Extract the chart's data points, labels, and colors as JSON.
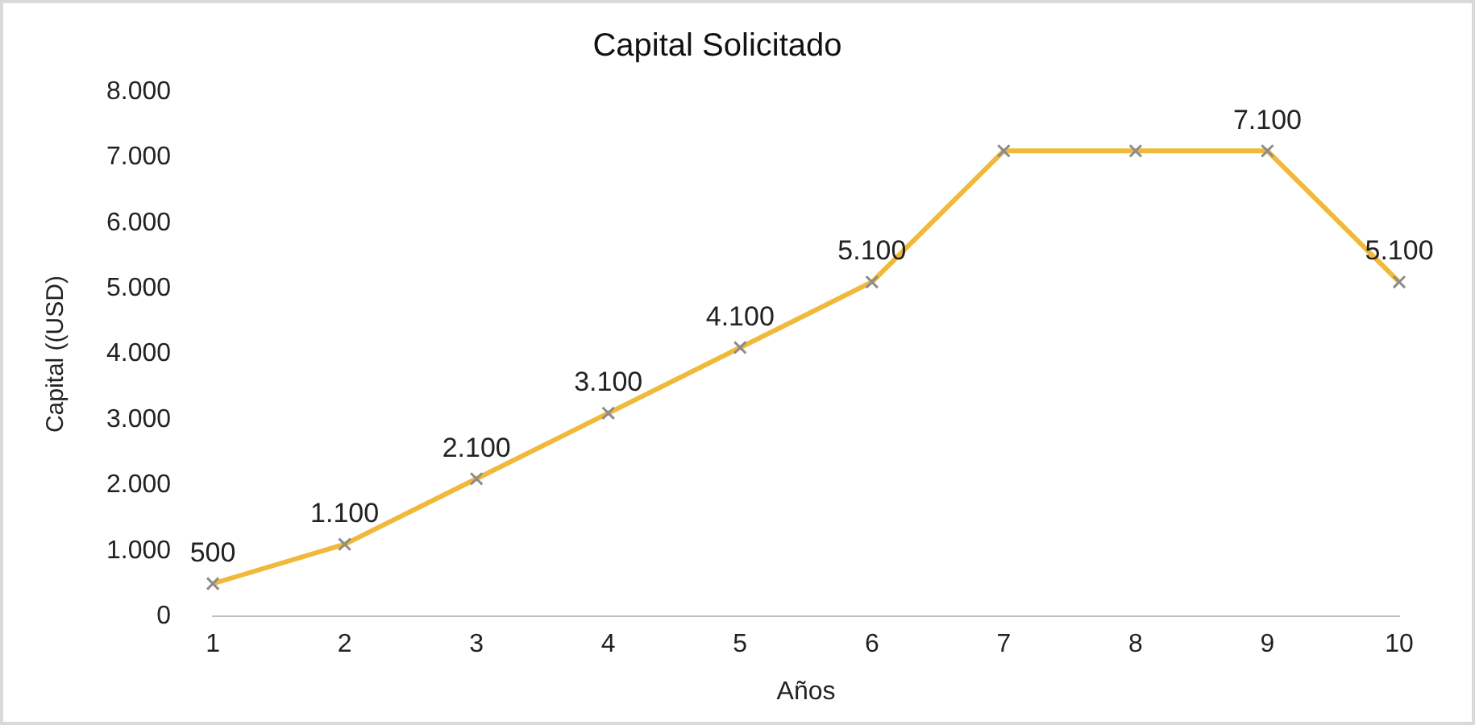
{
  "chart_data": {
    "type": "line",
    "title": "Capital Solicitado",
    "xlabel": "Años",
    "ylabel": "Capital ((USD)",
    "categories": [
      "1",
      "2",
      "3",
      "4",
      "5",
      "6",
      "7",
      "8",
      "9",
      "10"
    ],
    "series": [
      {
        "color": "#f0b93a",
        "values": [
          500,
          1100,
          2100,
          3100,
          4100,
          5100,
          7100,
          7100,
          7100,
          5100
        ],
        "value_labels": [
          "500",
          "1.100",
          "2.100",
          "3.100",
          "4.100",
          "5.100",
          null,
          null,
          "7.100",
          "5.100"
        ]
      }
    ],
    "ylim": [
      0,
      8000
    ],
    "yticks": [
      {
        "value": 0,
        "label": "0"
      },
      {
        "value": 1000,
        "label": "1.000"
      },
      {
        "value": 2000,
        "label": "2.000"
      },
      {
        "value": 3000,
        "label": "3.000"
      },
      {
        "value": 4000,
        "label": "4.000"
      },
      {
        "value": 5000,
        "label": "5.000"
      },
      {
        "value": 6000,
        "label": "6.000"
      },
      {
        "value": 7000,
        "label": "7.000"
      },
      {
        "value": 8000,
        "label": "8.000"
      }
    ],
    "marker": "cross",
    "grid": false,
    "legend": false
  }
}
